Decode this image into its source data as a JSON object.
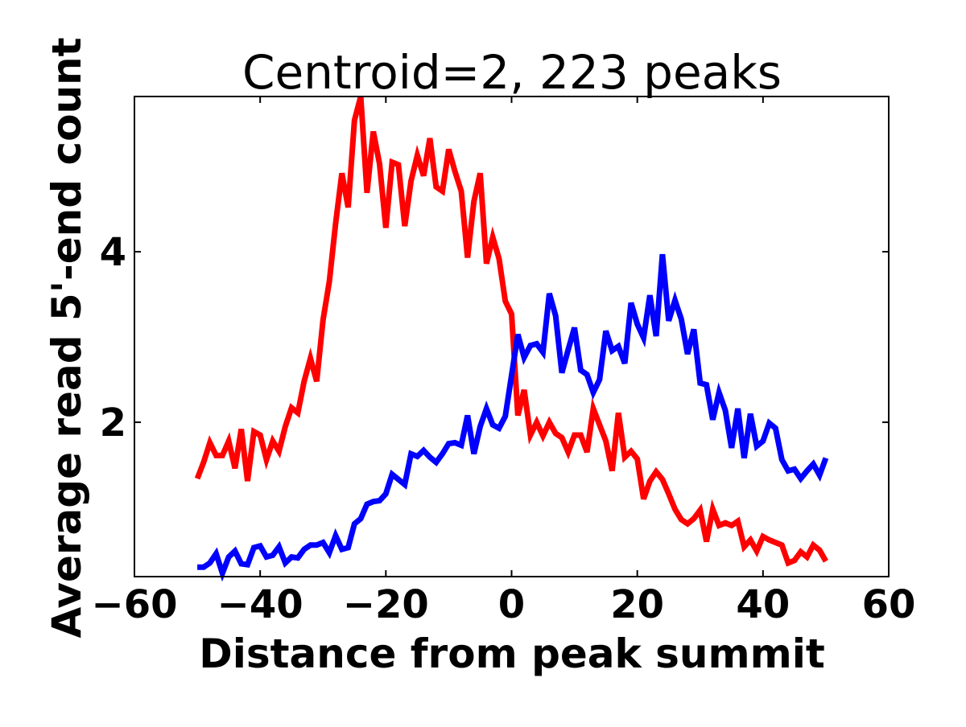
{
  "chart_data": {
    "type": "line",
    "title": "Centroid=2, 223 peaks",
    "xlabel": "Distance from peak summit",
    "ylabel": "Average read 5'-end count",
    "xlim": [
      -60,
      60
    ],
    "ylim": [
      0.19,
      5.82
    ],
    "xticks": [
      -60,
      -40,
      -20,
      0,
      20,
      40,
      60
    ],
    "xtick_labels": [
      "−60",
      "−40",
      "−20",
      "0",
      "20",
      "40",
      "60"
    ],
    "yticks": [
      2,
      4
    ],
    "ytick_labels": [
      "2",
      "4"
    ],
    "grid": false,
    "x_range": [
      -50,
      50
    ],
    "series": [
      {
        "color": "#ff0000",
        "values": [
          1.34,
          1.53,
          1.76,
          1.61,
          1.61,
          1.78,
          1.46,
          1.92,
          1.31,
          1.89,
          1.85,
          1.56,
          1.78,
          1.66,
          1.95,
          2.17,
          2.11,
          2.48,
          2.75,
          2.48,
          3.2,
          3.65,
          4.33,
          4.92,
          4.52,
          5.54,
          5.82,
          4.69,
          5.41,
          5.03,
          4.28,
          5.05,
          5.02,
          4.3,
          4.83,
          5.13,
          4.89,
          5.33,
          4.76,
          4.71,
          5.2,
          4.94,
          4.71,
          3.93,
          4.59,
          4.92,
          3.86,
          4.17,
          3.92,
          3.42,
          3.27,
          2.08,
          2.38,
          1.85,
          2.0,
          1.84,
          2.0,
          1.87,
          1.82,
          1.65,
          1.85,
          1.85,
          1.65,
          2.16,
          1.97,
          1.78,
          1.43,
          2.11,
          1.59,
          1.66,
          1.57,
          1.1,
          1.31,
          1.42,
          1.33,
          1.16,
          0.98,
          0.86,
          0.81,
          0.87,
          0.97,
          0.6,
          0.98,
          0.79,
          0.82,
          0.79,
          0.84,
          0.54,
          0.62,
          0.49,
          0.66,
          0.62,
          0.59,
          0.56,
          0.35,
          0.38,
          0.48,
          0.42,
          0.56,
          0.5,
          0.37
        ]
      },
      {
        "color": "#0000ff",
        "values": [
          0.3,
          0.3,
          0.35,
          0.46,
          0.23,
          0.42,
          0.49,
          0.34,
          0.33,
          0.53,
          0.55,
          0.42,
          0.44,
          0.54,
          0.35,
          0.42,
          0.41,
          0.51,
          0.56,
          0.56,
          0.59,
          0.47,
          0.67,
          0.51,
          0.53,
          0.81,
          0.87,
          1.04,
          1.07,
          1.08,
          1.16,
          1.39,
          1.33,
          1.27,
          1.63,
          1.6,
          1.67,
          1.59,
          1.53,
          1.63,
          1.75,
          1.76,
          1.73,
          2.08,
          1.63,
          1.95,
          2.16,
          1.97,
          1.93,
          2.07,
          2.55,
          3.03,
          2.76,
          2.9,
          2.92,
          2.82,
          3.51,
          3.25,
          2.58,
          2.85,
          3.11,
          2.61,
          2.56,
          2.35,
          2.5,
          3.07,
          2.84,
          2.89,
          2.69,
          3.4,
          3.15,
          2.99,
          3.49,
          3.01,
          3.97,
          3.19,
          3.43,
          3.21,
          2.8,
          3.09,
          2.46,
          2.44,
          2.03,
          2.35,
          2.14,
          1.7,
          2.16,
          1.58,
          2.1,
          1.72,
          1.78,
          1.99,
          1.93,
          1.56,
          1.43,
          1.45,
          1.34,
          1.43,
          1.51,
          1.38,
          1.58
        ]
      }
    ]
  }
}
